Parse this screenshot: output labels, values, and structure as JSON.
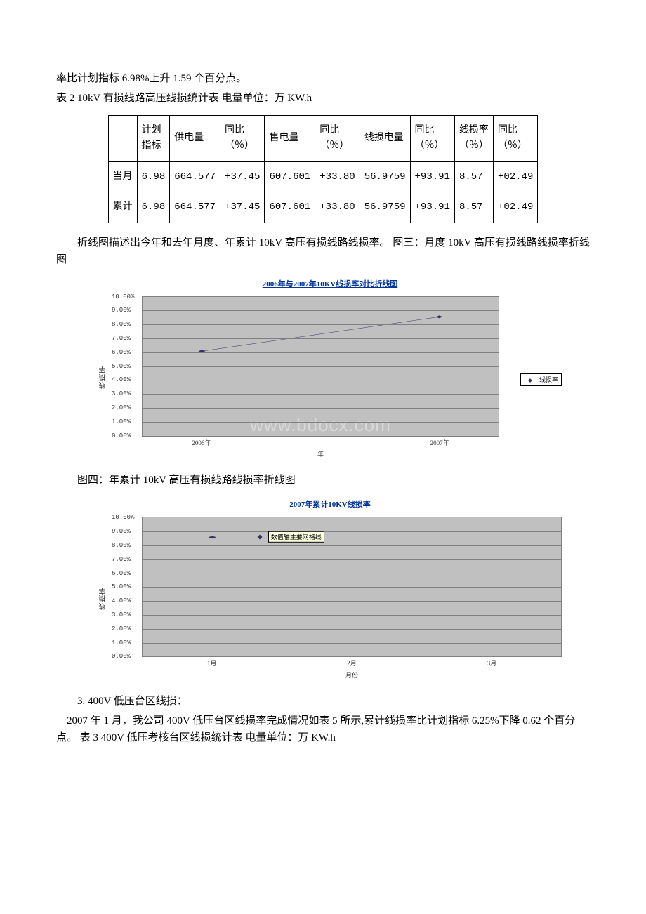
{
  "intro": {
    "line1": "率比计划指标 6.98%上升 1.59 个百分点。",
    "line2": "表 2 10kV 有损线路高压线损统计表 电量单位：万 KW.h"
  },
  "table2": {
    "headers": [
      "",
      "计划指标",
      "供电量",
      "同比（％）",
      "售电量",
      "同比（％）",
      "线损电量",
      "同比（％）",
      "线损率（％）",
      "同比（％）"
    ],
    "rows": [
      [
        "当月",
        "6.98",
        "664.577",
        "+37.45",
        "607.601",
        "+33.80",
        "56.9759",
        "+93.91",
        "8.57",
        "+02.49"
      ],
      [
        "累计",
        "6.98",
        "664.577",
        "+37.45",
        "607.601",
        "+33.80",
        "56.9759",
        "+93.91",
        "8.57",
        "+02.49"
      ]
    ]
  },
  "para2": "折线图描述出今年和去年月度、年累计 10kV 高压有损线路线损率。 图三：月度 10kV 高压有损线路线损率折线图",
  "chart3": {
    "title": "2006年与2007年10KV线损率对比折线图",
    "ylabel": "线损率",
    "ylim": [
      0,
      10
    ],
    "ytick_step": 1,
    "y_format": "pct2",
    "x_categories": [
      "2006年",
      "",
      "2007年"
    ],
    "x_label": "年",
    "series": [
      {
        "name": "线损率",
        "color": "#333366",
        "points": [
          {
            "xi": 0,
            "y": 6.1
          },
          {
            "xi": 2,
            "y": 8.57
          }
        ]
      }
    ],
    "legend": "线损率",
    "legend_pos": "side",
    "bg": "#c0c0c0",
    "grid_color": "#808080",
    "watermark": "www.bdocx.com"
  },
  "para3": "图四：年累计 10kV 高压有损线路线损率折线图",
  "chart4": {
    "title": "2007年累计10KV线损率",
    "ylabel": "线损率",
    "ylim": [
      0,
      10
    ],
    "ytick_step": 1,
    "y_format": "pct2",
    "x_categories": [
      "1月",
      "2月",
      "3月"
    ],
    "x_label": "月份",
    "series": [
      {
        "name": "数值轴主要网格线",
        "color": "#333366",
        "points": [
          {
            "xi": 0,
            "y": 8.57
          }
        ]
      }
    ],
    "tooltip": {
      "text": "数值轴主要网格线",
      "left_pct": 30,
      "y": 8.6
    },
    "legend_pos": "none",
    "bg": "#c0c0c0",
    "grid_color": "#808080"
  },
  "sec3": {
    "heading": "3. 400V 低压台区线损：",
    "body": "2007 年 1 月，我公司 400V 低压台区线损率完成情况如表 5 所示,累计线损率比计划指标 6.25%下降 0.62 个百分点。 表 3 400V 低压考核台区线损统计表 电量单位：万 KW.h"
  }
}
